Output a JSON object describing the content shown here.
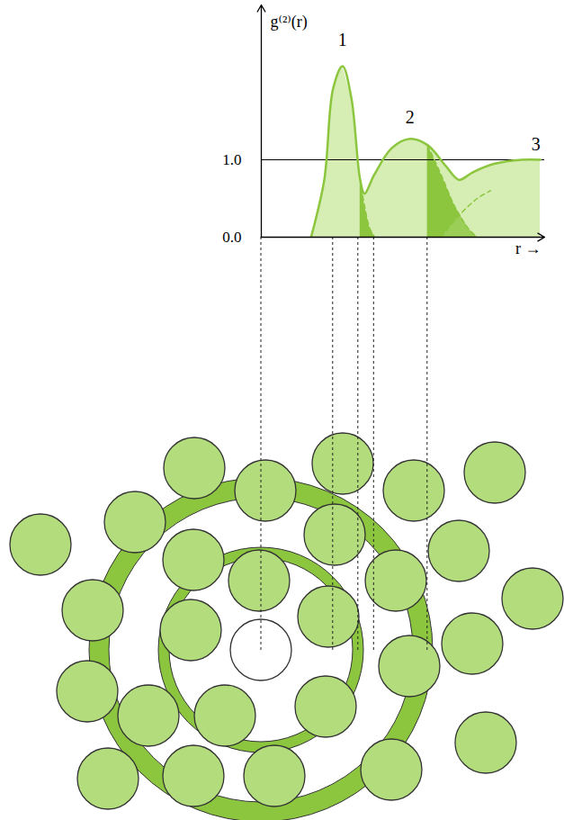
{
  "chart_data": {
    "type": "line",
    "ylabel": "g⁽²⁾(r)",
    "xlabel": "r →",
    "xlim": [
      0,
      4.5
    ],
    "ylim": [
      0,
      3
    ],
    "yticks": [
      0,
      1
    ],
    "grid": true,
    "tick_labels": "y",
    "series": [
      {
        "line_style": "solid",
        "color": "#8cc63f",
        "x": [
          0.79,
          1.0,
          1.14,
          1.29,
          1.43,
          1.57,
          1.64,
          1.79,
          2.07,
          2.36,
          2.64,
          2.93,
          3.14,
          3.36,
          3.71,
          4.14,
          4.43
        ],
        "values": [
          0,
          0.74,
          1.92,
          2.21,
          1.8,
          0.74,
          0.56,
          0.8,
          1.15,
          1.27,
          1.19,
          0.92,
          0.74,
          0.84,
          0.95,
          1.0,
          1.0
        ]
      },
      {
        "line_style": "dashed",
        "color": "#8cc63f",
        "x": [
          1.57,
          1.64,
          1.72,
          1.8
        ],
        "values": [
          0.74,
          0.4,
          0.12,
          0
        ]
      },
      {
        "line_style": "dashed",
        "color": "#8cc63f",
        "x": [
          2.64,
          2.86,
          3.07,
          3.3,
          3.43
        ],
        "values": [
          1.19,
          0.8,
          0.4,
          0.1,
          0
        ]
      },
      {
        "line_style": "dashed",
        "color": "#8cc63f",
        "x": [
          2.86,
          3.14,
          3.43,
          3.64
        ],
        "values": [
          0,
          0.28,
          0.5,
          0.6
        ]
      }
    ],
    "annotations": [
      {
        "text": "1",
        "x": 1.29,
        "y": 2.55
      },
      {
        "text": "2",
        "x": 2.36,
        "y": 1.55
      },
      {
        "text": "3",
        "x": 4.36,
        "y": 1.2
      }
    ],
    "guide_x": [
      0,
      1.14,
      1.54,
      1.79,
      2.64
    ]
  }
}
